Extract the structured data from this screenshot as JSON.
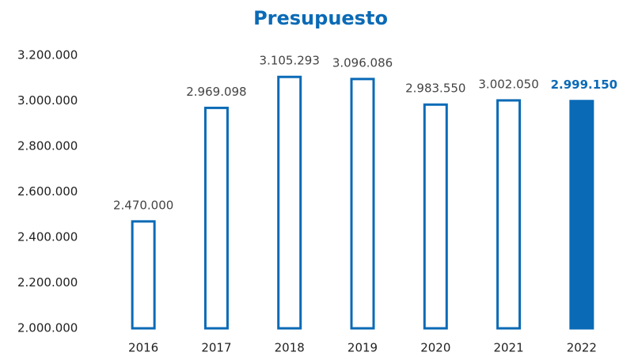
{
  "chart_data": {
    "type": "bar",
    "title": "Presupuesto",
    "categories": [
      "2016",
      "2017",
      "2018",
      "2019",
      "2020",
      "2021",
      "2022"
    ],
    "values": [
      2470000,
      2969098,
      3105293,
      3096086,
      2983550,
      3002050,
      2999150
    ],
    "value_labels": [
      "2.470.000",
      "2.969.098",
      "3.105.293",
      "3.096.086",
      "2.983.550",
      "3.002.050",
      "2.999.150"
    ],
    "color": "#0a6ab6",
    "filled": [
      false,
      false,
      false,
      false,
      false,
      false,
      true
    ],
    "ylim": [
      2000000,
      3200000
    ],
    "yticks": [
      {
        "value": 2000000,
        "label": "2.000.000"
      },
      {
        "value": 2200000,
        "label": "2.200.000"
      },
      {
        "value": 2400000,
        "label": "2.400.000"
      },
      {
        "value": 2600000,
        "label": "2.600.000"
      },
      {
        "value": 2800000,
        "label": "2.800.000"
      },
      {
        "value": 3000000,
        "label": "3.000.000"
      },
      {
        "value": 3200000,
        "label": "3.200.000"
      }
    ],
    "grid": false
  }
}
